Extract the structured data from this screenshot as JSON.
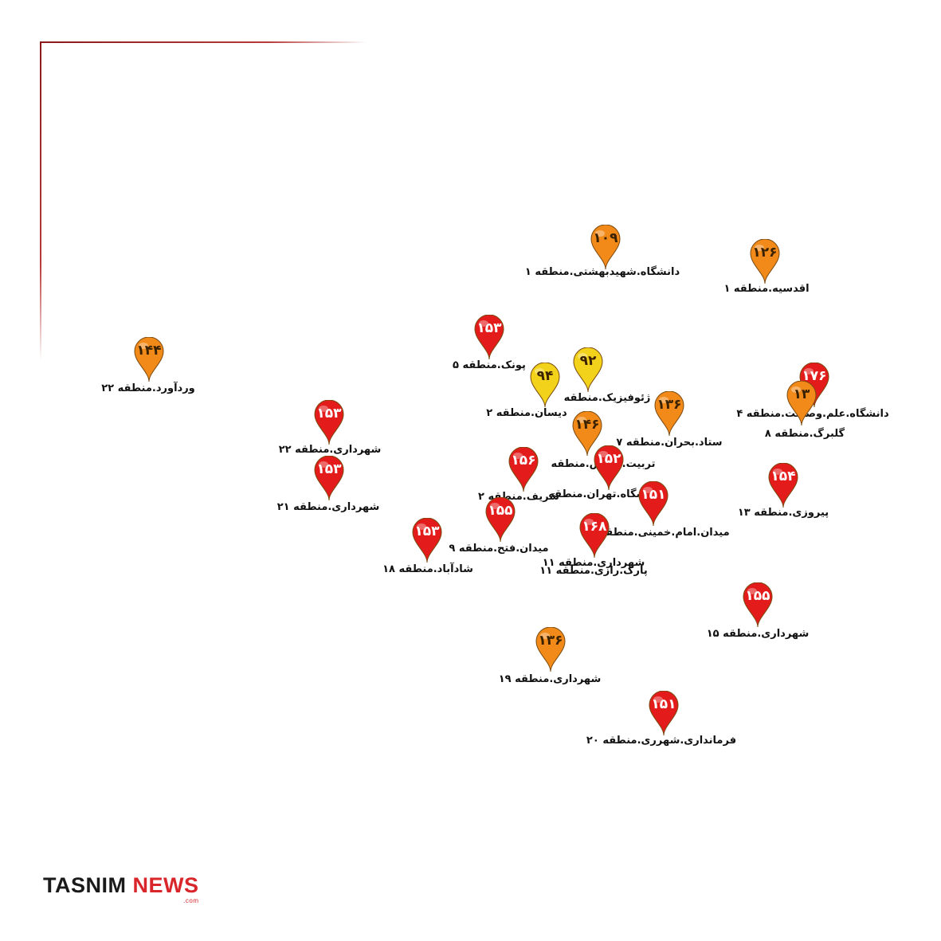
{
  "logo": {
    "word1": "TASNIM",
    "word2": "NEWS",
    "suffix": ".com"
  },
  "colors": {
    "red": "#e31b1b",
    "orange": "#f28a1a",
    "yellow": "#f2d21a",
    "frame": "#8b1a1a"
  },
  "stations": [
    {
      "value": "۱۰۹",
      "label": "دانشگاه.شهیدبهشتی.منطقه ۱",
      "level": "orange"
    },
    {
      "value": "۱۲۶",
      "label": "اقدسیه.منطقه ۱",
      "level": "orange"
    },
    {
      "value": "۱۴۴",
      "label": "وردآورد.منطقه ۲۲",
      "level": "orange"
    },
    {
      "value": "۱۵۳",
      "label": "پونک.منطقه ۵",
      "level": "red"
    },
    {
      "value": "۹۲",
      "label": "ژئوفیزیک.منطقه",
      "level": "yellow"
    },
    {
      "value": "۹۴",
      "label": "دیسان.منطقه ۲",
      "level": "yellow"
    },
    {
      "value": "۱۷۶",
      "label": "دانشگاه.علم.وصنعت.منطقه ۴",
      "level": "red"
    },
    {
      "value": "۱۳",
      "label": "گلبرگ.منطقه ۸",
      "level": "orange"
    },
    {
      "value": "۱۳۶",
      "label": "ستاد.بحران.منطقه ۷",
      "level": "orange"
    },
    {
      "value": "۱۴۶",
      "label": "تربیت.مدرس.منطقه",
      "level": "orange"
    },
    {
      "value": "۱۵۳",
      "label": "شهرداری.منطقه ۲۲",
      "level": "red"
    },
    {
      "value": "۱۵۳",
      "label": "شهرداری.منطقه ۲۱",
      "level": "red"
    },
    {
      "value": "۱۵۶",
      "label": "شریف.منطقه ۲",
      "level": "red"
    },
    {
      "value": "۱۵۲",
      "label": "دانشگاه.تهران.منطقه",
      "level": "red"
    },
    {
      "value": "۱۵۴",
      "label": "پیروزی.منطقه ۱۳",
      "level": "red"
    },
    {
      "value": "۱۵۱",
      "label": "میدان.امام.خمینی.منطقه",
      "level": "red"
    },
    {
      "value": "۱۵۵",
      "label": "میدان.فتح.منطقه ۹",
      "level": "red"
    },
    {
      "value": "۱۵۳",
      "label": "شادآباد.منطقه ۱۸",
      "level": "red"
    },
    {
      "value": "۱۶۸",
      "label": "شهرداری.منطقه ۱۱",
      "level": "red"
    },
    {
      "value": "",
      "label": "پارک.رازی.منطقه ۱۱",
      "level": "red"
    },
    {
      "value": "۱۵۵",
      "label": "شهرداری.منطقه ۱۵",
      "level": "red"
    },
    {
      "value": "۱۳۶",
      "label": "شهرداری.منطقه ۱۹",
      "level": "orange"
    },
    {
      "value": "۱۵۱",
      "label": "فرمانداری.شهرری.منطقه ۲۰",
      "level": "red"
    }
  ]
}
